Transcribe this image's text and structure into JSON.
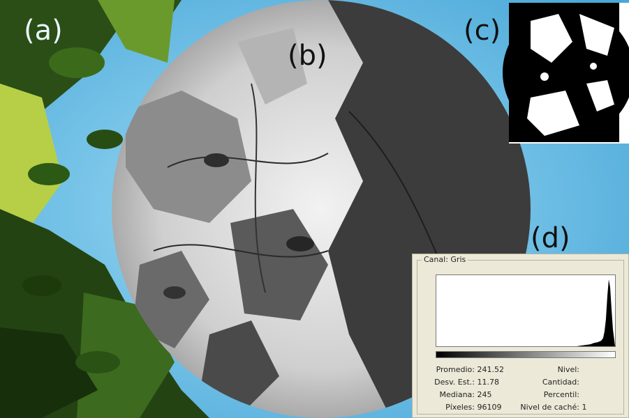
{
  "labels": {
    "a": "(a)",
    "b": "(b)",
    "c": "(c)",
    "d": "(d)"
  },
  "histogram": {
    "channel_label": "Canal: Gris",
    "chart_data": {
      "type": "area",
      "title": "",
      "xlim": [
        0,
        255
      ],
      "x": [
        0,
        200,
        220,
        225,
        230,
        235,
        238,
        240,
        242,
        244,
        246,
        248,
        250,
        252,
        255
      ],
      "values": [
        0,
        0,
        3,
        5,
        6,
        8,
        12,
        22,
        40,
        75,
        100,
        88,
        55,
        25,
        0
      ]
    },
    "stats_left": [
      {
        "label": "Promedio:",
        "value": "241.52"
      },
      {
        "label": "Desv. Est.:",
        "value": "11.78"
      },
      {
        "label": "Mediana:",
        "value": "245"
      },
      {
        "label": "Píxeles:",
        "value": "96109"
      }
    ],
    "stats_right": [
      {
        "label": "Nivel:",
        "value": ""
      },
      {
        "label": "Cantidad:",
        "value": ""
      },
      {
        "label": "Percentil:",
        "value": ""
      },
      {
        "label": "Nivel de caché:",
        "value": "1"
      }
    ]
  },
  "colors": {
    "sky": "#7ec8ee",
    "foliage_dark": "#1f3a10",
    "foliage_light": "#a5c93a",
    "panel_bg": "#ece9d8"
  }
}
